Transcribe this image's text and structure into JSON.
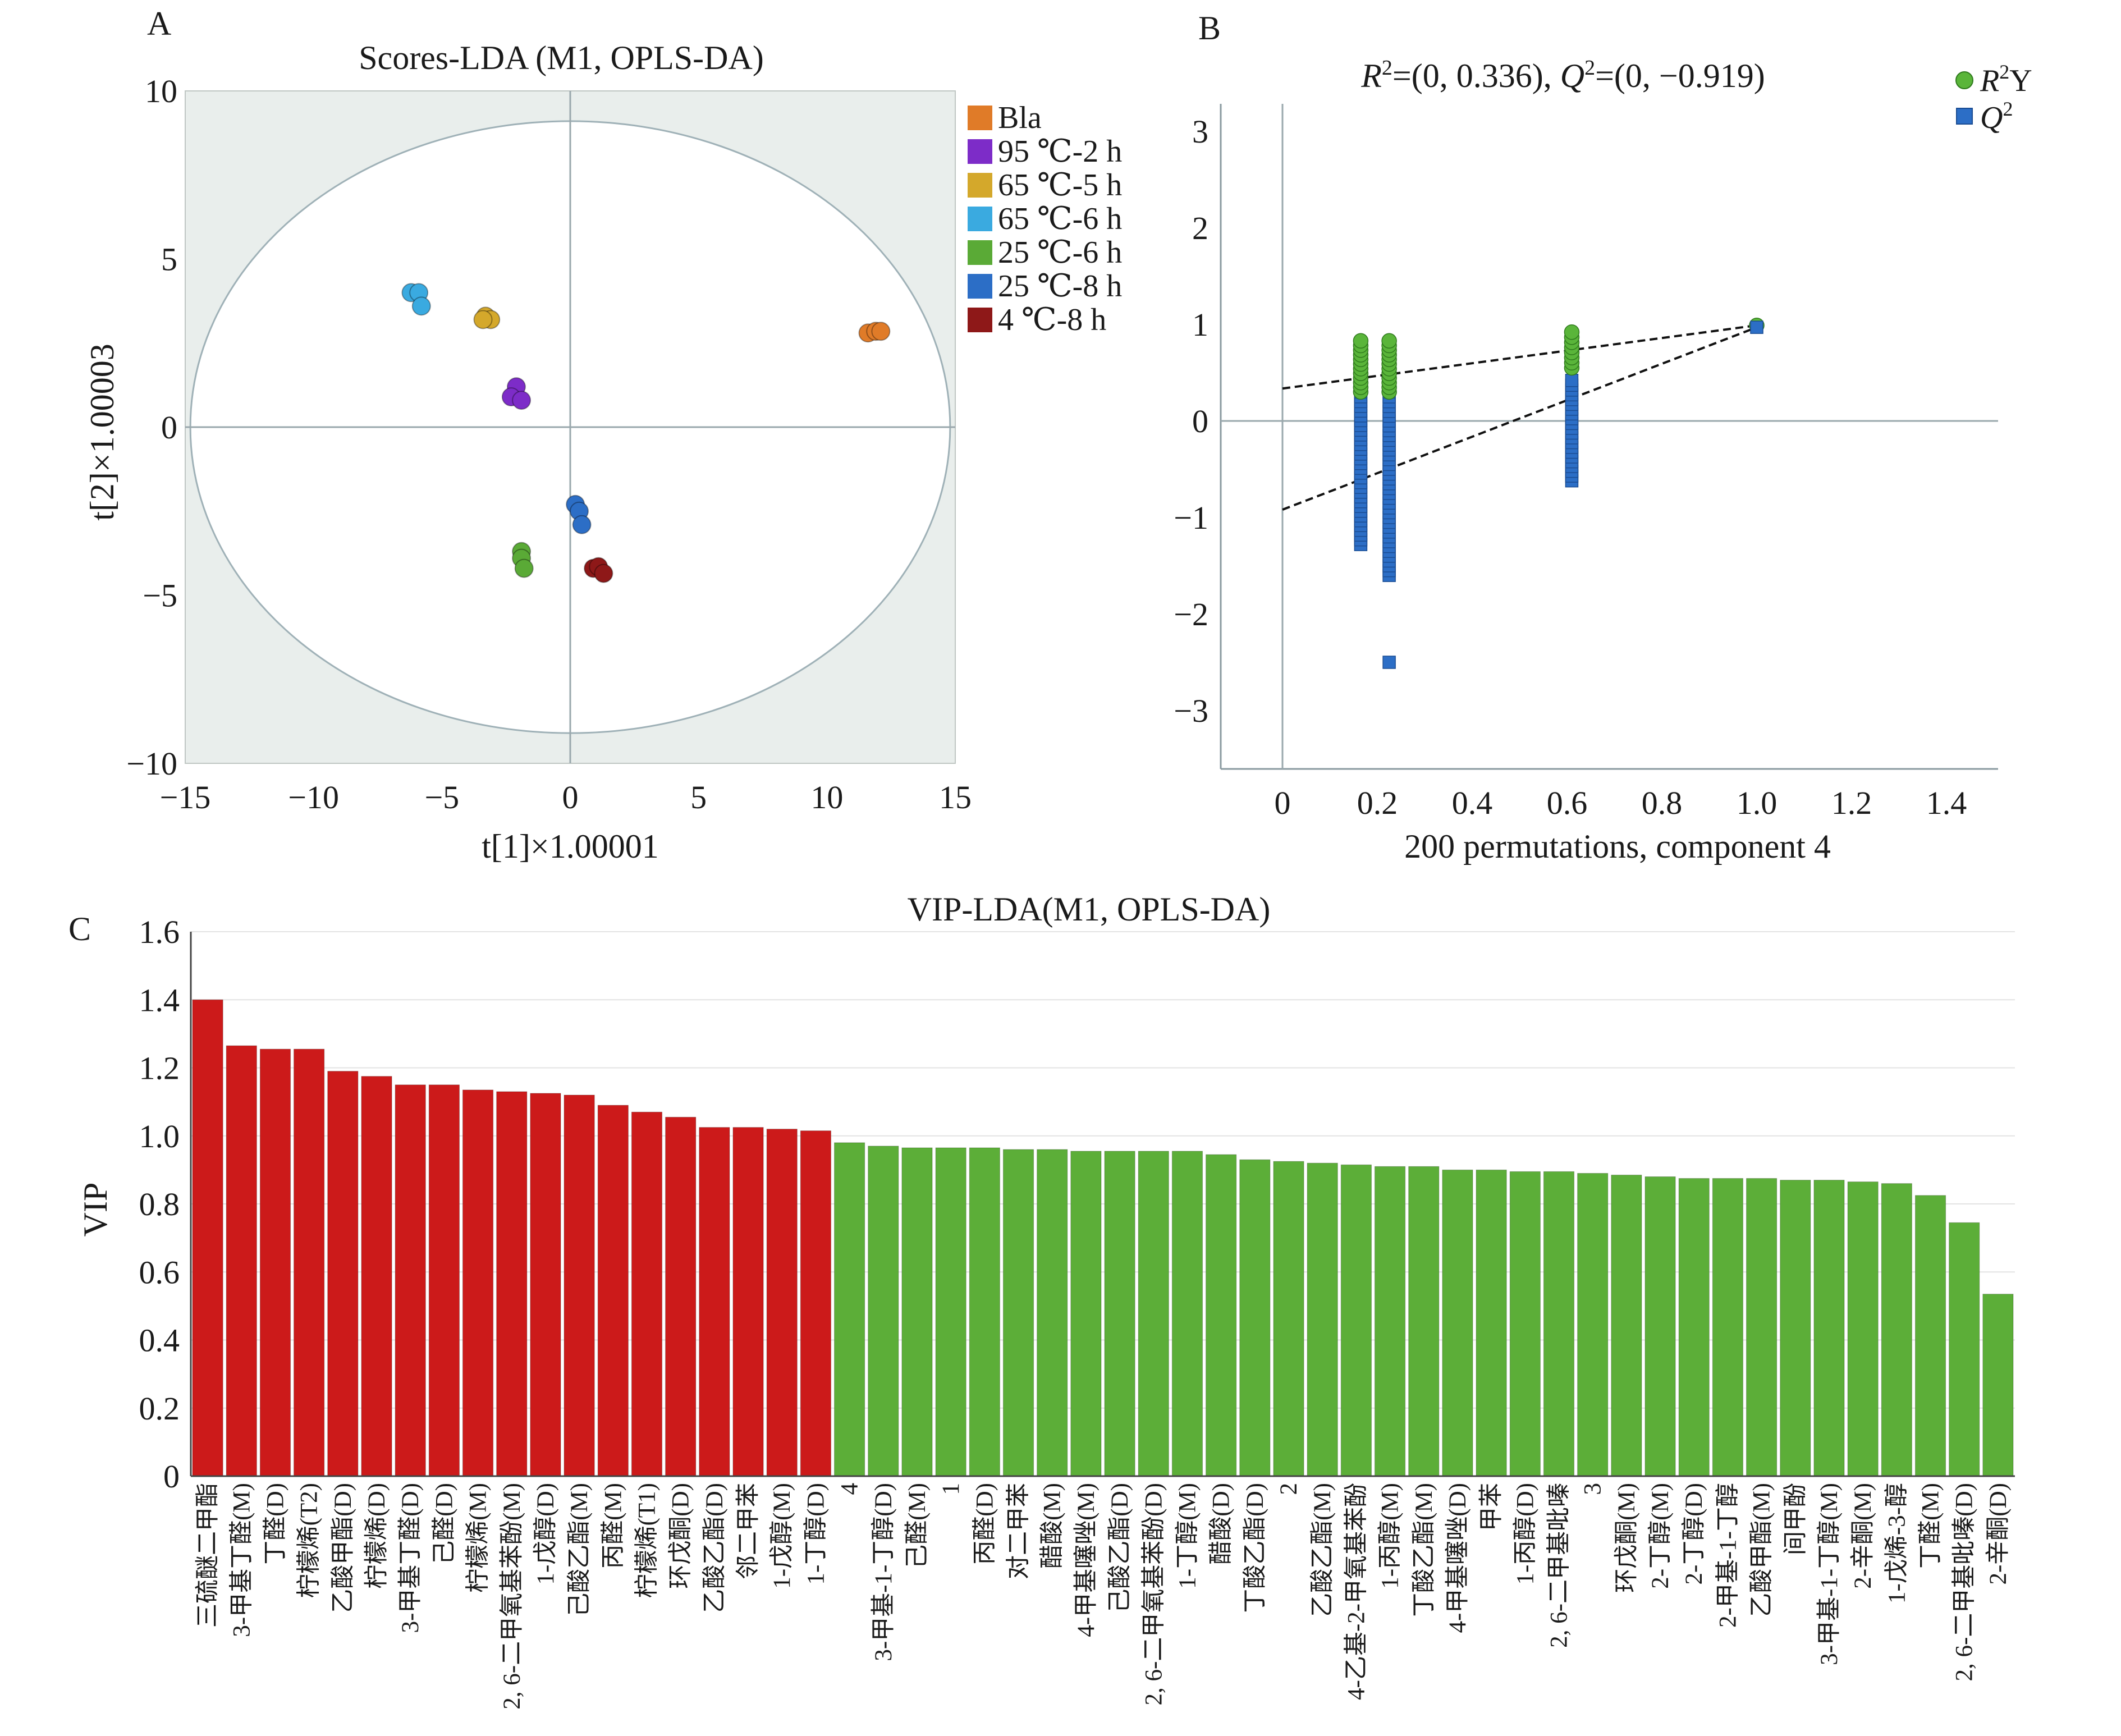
{
  "panels": {
    "a": "A",
    "b": "B",
    "c": "C"
  },
  "chart_data": [
    {
      "type": "scatter",
      "title": "Scores-LDA (M1, OPLS-DA)",
      "xlabel": "t[1]×1.00001",
      "ylabel": "t[2]×1.00003",
      "xlim": [
        -15,
        15
      ],
      "ylim": [
        -10,
        10
      ],
      "xticks": [
        -15,
        -10,
        -5,
        0,
        5,
        10,
        15
      ],
      "yticks": [
        -10,
        -5,
        0,
        5,
        10
      ],
      "ellipse": {
        "rx": 14.8,
        "ry": 9.1
      },
      "series": [
        {
          "name": "Bla",
          "color": "#e07b28",
          "points": [
            [
              11.6,
              2.8
            ],
            [
              11.9,
              2.85
            ],
            [
              12.1,
              2.85
            ]
          ]
        },
        {
          "name": "95 ℃-2 h",
          "color": "#7d2cc8",
          "points": [
            [
              -2.1,
              1.2
            ],
            [
              -2.3,
              0.9
            ],
            [
              -1.9,
              0.8
            ]
          ]
        },
        {
          "name": "65 ℃-5 h",
          "color": "#d4a82b",
          "points": [
            [
              -3.3,
              3.3
            ],
            [
              -3.1,
              3.2
            ],
            [
              -3.4,
              3.2
            ]
          ]
        },
        {
          "name": "65 ℃-6 h",
          "color": "#3aaae0",
          "points": [
            [
              -6.2,
              4.0
            ],
            [
              -5.9,
              4.0
            ],
            [
              -5.8,
              3.6
            ]
          ]
        },
        {
          "name": "25 ℃-6 h",
          "color": "#5aaa36",
          "points": [
            [
              -1.9,
              -3.7
            ],
            [
              -1.9,
              -3.9
            ],
            [
              -1.8,
              -4.2
            ]
          ]
        },
        {
          "name": "25 ℃-8 h",
          "color": "#2c6ec6",
          "points": [
            [
              0.2,
              -2.3
            ],
            [
              0.35,
              -2.5
            ],
            [
              0.45,
              -2.9
            ]
          ]
        },
        {
          "name": "4 ℃-8 h",
          "color": "#8e1818",
          "points": [
            [
              0.9,
              -4.2
            ],
            [
              1.1,
              -4.15
            ],
            [
              1.3,
              -4.35
            ]
          ]
        }
      ]
    },
    {
      "type": "scatter",
      "title": "R²=(0, 0.336), Q²=(0, −0.919)",
      "xlabel": "200 permutations, component 4",
      "ylabel": "",
      "xlim": [
        -0.13,
        1.51
      ],
      "ylim": [
        -3.6,
        3.3
      ],
      "xticks": [
        0,
        0.2,
        0.4,
        0.6,
        0.8,
        1.0,
        1.2,
        1.4
      ],
      "yticks": [
        -3,
        -2,
        -1,
        0,
        1,
        2,
        3
      ],
      "r2_intercept": 0.336,
      "q2_intercept": -0.919,
      "series": [
        {
          "name": "R²Y",
          "color": "#5ab53a",
          "x": [
            0.165,
            0.225,
            0.61
          ],
          "ymin": [
            0.3,
            0.3,
            0.55
          ],
          "ymax": [
            0.83,
            0.83,
            0.92
          ],
          "end": [
            1.0,
            0.99
          ]
        },
        {
          "name": "Q²",
          "color": "#2c6ec6",
          "x": [
            0.165,
            0.225,
            0.61
          ],
          "ymin": [
            -1.28,
            -1.6,
            -0.62
          ],
          "ymax": [
            0.3,
            0.45,
            0.42
          ],
          "outlier": [
            0.225,
            -2.5
          ],
          "end": [
            1.0,
            0.97
          ]
        }
      ]
    },
    {
      "type": "bar",
      "title": "VIP-LDA(M1, OPLS-DA)",
      "xlabel": "",
      "ylabel": "VIP",
      "ylim": [
        0,
        1.6
      ],
      "yticks": [
        "0",
        "0.2",
        "0.4",
        "0.6",
        "0.8",
        "1.0",
        "1.2",
        "1.4",
        "1.6"
      ],
      "threshold": 1.0,
      "colors": {
        "above": "#cc1a1a",
        "below": "#5cae38"
      },
      "categories": [
        "三硫醚二甲酯",
        "3-甲基丁醛(M)",
        "丁醛(D)",
        "柠檬烯(T2)",
        "乙酸甲酯(D)",
        "柠檬烯(D)",
        "3-甲基丁醛(D)",
        "己醛(D)",
        "柠檬烯(M)",
        "2, 6-二甲氧基苯酚(M)",
        "1-戊醇(D)",
        "己酸乙酯(M)",
        "丙醛(M)",
        "柠檬烯(T1)",
        "环戊酮(D)",
        "乙酸乙酯(D)",
        "邻二甲苯",
        "1-戊醇(M)",
        "1-丁醇(D)",
        "4",
        "3-甲基-1-丁醇(D)",
        "己醛(M)",
        "1",
        "丙醛(D)",
        "对二甲苯",
        "醋酸(M)",
        "4-甲基噻唑(M)",
        "己酸乙酯(D)",
        "2, 6-二甲氧基苯酚(D)",
        "1-丁醇(M)",
        "醋酸(D)",
        "丁酸乙酯(D)",
        "2",
        "乙酸乙酯(M)",
        "4-乙基-2-甲氧基苯酚",
        "1-丙醇(M)",
        "丁酸乙酯(M)",
        "4-甲基噻唑(D)",
        "甲苯",
        "1-丙醇(D)",
        "2, 6-二甲基吡嗪",
        "3",
        "环戊酮(M)",
        "2-丁醇(M)",
        "2-丁醇(D)",
        "2-甲基-1-丁醇",
        "乙酸甲酯(M)",
        "间甲酚",
        "3-甲基-1-丁醇(M)",
        "2-辛酮(M)",
        "1-戊烯-3-醇",
        "丁醛(M)",
        "2, 6-二甲基吡嗪(D)",
        "2-辛酮(D)"
      ],
      "values": [
        1.4,
        1.265,
        1.255,
        1.255,
        1.19,
        1.175,
        1.15,
        1.15,
        1.135,
        1.13,
        1.125,
        1.12,
        1.09,
        1.07,
        1.055,
        1.025,
        1.025,
        1.02,
        1.015,
        0.98,
        0.97,
        0.965,
        0.965,
        0.965,
        0.96,
        0.96,
        0.955,
        0.955,
        0.955,
        0.955,
        0.945,
        0.93,
        0.925,
        0.92,
        0.915,
        0.91,
        0.91,
        0.9,
        0.9,
        0.895,
        0.895,
        0.89,
        0.885,
        0.88,
        0.875,
        0.875,
        0.875,
        0.87,
        0.87,
        0.865,
        0.86,
        0.825,
        0.745,
        0.535
      ]
    }
  ]
}
